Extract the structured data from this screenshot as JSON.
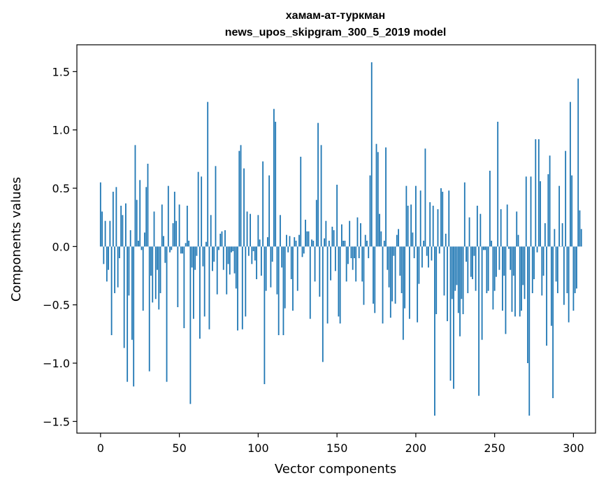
{
  "chart_data": {
    "type": "bar",
    "title": "хамам-ат-туркман",
    "subtitle": "news_upos_skipgram_300_5_2019 model",
    "xlabel": "Vector components",
    "ylabel": "Components values",
    "xlim": [
      -15,
      314
    ],
    "ylim": [
      -1.6,
      1.73
    ],
    "xticks": [
      0,
      50,
      100,
      150,
      200,
      250,
      300
    ],
    "yticks": [
      -1.5,
      -1.0,
      -0.5,
      0.0,
      0.5,
      1.0,
      1.5
    ],
    "ytick_labels": [
      "−1.5",
      "−1.0",
      "−0.5",
      "0.0",
      "0.5",
      "1.0",
      "1.5"
    ],
    "bar_color": "#1f77b4",
    "values": [
      0.55,
      0.3,
      -0.15,
      0.22,
      -0.3,
      -0.2,
      0.22,
      -0.76,
      0.47,
      -0.4,
      0.51,
      -0.35,
      -0.1,
      0.35,
      0.27,
      -0.87,
      0.37,
      -1.16,
      -0.42,
      0.14,
      -0.8,
      -1.2,
      0.87,
      0.4,
      0.05,
      0.57,
      -0.03,
      -0.55,
      0.12,
      0.51,
      0.71,
      -1.07,
      -0.25,
      -0.48,
      0.3,
      -0.45,
      -0.2,
      -0.54,
      -0.4,
      0.36,
      0.09,
      -0.14,
      -1.16,
      0.52,
      -0.05,
      -0.03,
      0.2,
      0.47,
      0.22,
      -0.52,
      0.36,
      -0.06,
      -0.06,
      -0.7,
      0.03,
      0.35,
      0.05,
      -1.35,
      -0.18,
      -0.62,
      -0.2,
      -0.08,
      0.64,
      -0.79,
      0.6,
      -0.17,
      -0.6,
      0.04,
      1.24,
      -0.71,
      0.27,
      -0.21,
      -0.13,
      0.69,
      -0.41,
      -0.03,
      0.11,
      0.13,
      -0.2,
      0.14,
      -0.41,
      -0.15,
      -0.24,
      -0.05,
      -0.04,
      -0.23,
      -0.36,
      -0.72,
      0.82,
      0.87,
      -0.71,
      0.67,
      -0.6,
      0.3,
      -0.08,
      0.28,
      -0.15,
      -0.04,
      -0.12,
      -0.28,
      0.27,
      0.06,
      -0.25,
      0.73,
      -1.18,
      -0.38,
      0.08,
      0.61,
      -0.35,
      -0.13,
      1.18,
      1.07,
      -0.41,
      -0.76,
      0.27,
      -0.18,
      -0.76,
      -0.53,
      0.1,
      -0.05,
      0.09,
      -0.28,
      -0.55,
      0.08,
      0.05,
      -0.38,
      0.1,
      0.77,
      -0.09,
      -0.06,
      0.23,
      0.13,
      0.13,
      -0.62,
      0.06,
      0.05,
      -0.3,
      0.4,
      1.06,
      -0.43,
      0.87,
      -0.99,
      0.07,
      0.22,
      -0.66,
      0.05,
      -0.29,
      0.17,
      0.14,
      -0.21,
      0.53,
      -0.6,
      -0.66,
      0.19,
      0.05,
      0.05,
      -0.3,
      -0.15,
      0.22,
      -0.1,
      -0.2,
      -0.1,
      -0.3,
      0.25,
      -0.1,
      0.2,
      -0.3,
      -0.5,
      0.1,
      0.05,
      -0.1,
      0.61,
      1.58,
      -0.49,
      -0.57,
      0.88,
      0.81,
      0.28,
      0.13,
      -0.66,
      0.05,
      0.85,
      -0.2,
      -0.35,
      -0.61,
      -0.47,
      -0.08,
      -0.49,
      0.1,
      0.15,
      -0.25,
      -0.4,
      -0.8,
      -0.53,
      0.52,
      0.35,
      -0.62,
      0.36,
      0.12,
      -0.1,
      0.52,
      -0.65,
      -0.32,
      0.48,
      -0.18,
      0.05,
      0.84,
      -0.08,
      -0.18,
      0.38,
      -0.12,
      0.35,
      -1.45,
      -0.58,
      0.32,
      -0.06,
      0.5,
      0.47,
      -0.42,
      0.11,
      -0.64,
      0.48,
      -1.15,
      -0.45,
      -1.22,
      -0.38,
      -0.33,
      -0.57,
      -0.77,
      -0.45,
      -0.58,
      0.55,
      -0.13,
      -0.4,
      0.25,
      -0.26,
      -0.28,
      -0.08,
      -0.38,
      0.35,
      -1.28,
      0.28,
      -0.8,
      -0.03,
      -0.03,
      -0.4,
      -0.38,
      0.65,
      0.05,
      -0.54,
      -0.38,
      -0.26,
      1.07,
      -0.2,
      0.32,
      -0.55,
      -0.25,
      -0.75,
      0.36,
      -0.02,
      -0.2,
      -0.56,
      -0.25,
      -0.6,
      0.3,
      0.1,
      -0.6,
      -0.55,
      -0.33,
      -0.45,
      0.6,
      -1.0,
      -1.45,
      0.6,
      -0.4,
      -0.28,
      0.92,
      -0.05,
      0.92,
      0.56,
      -0.42,
      -0.25,
      0.2,
      -0.85,
      0.62,
      0.78,
      -0.68,
      -1.3,
      0.15,
      -0.3,
      -0.4,
      0.52,
      0.0,
      0.2,
      -0.5,
      0.82,
      -0.4,
      -0.65,
      1.24,
      0.61,
      -0.55,
      -0.4,
      -0.36,
      1.44,
      0.31,
      0.15
    ]
  }
}
